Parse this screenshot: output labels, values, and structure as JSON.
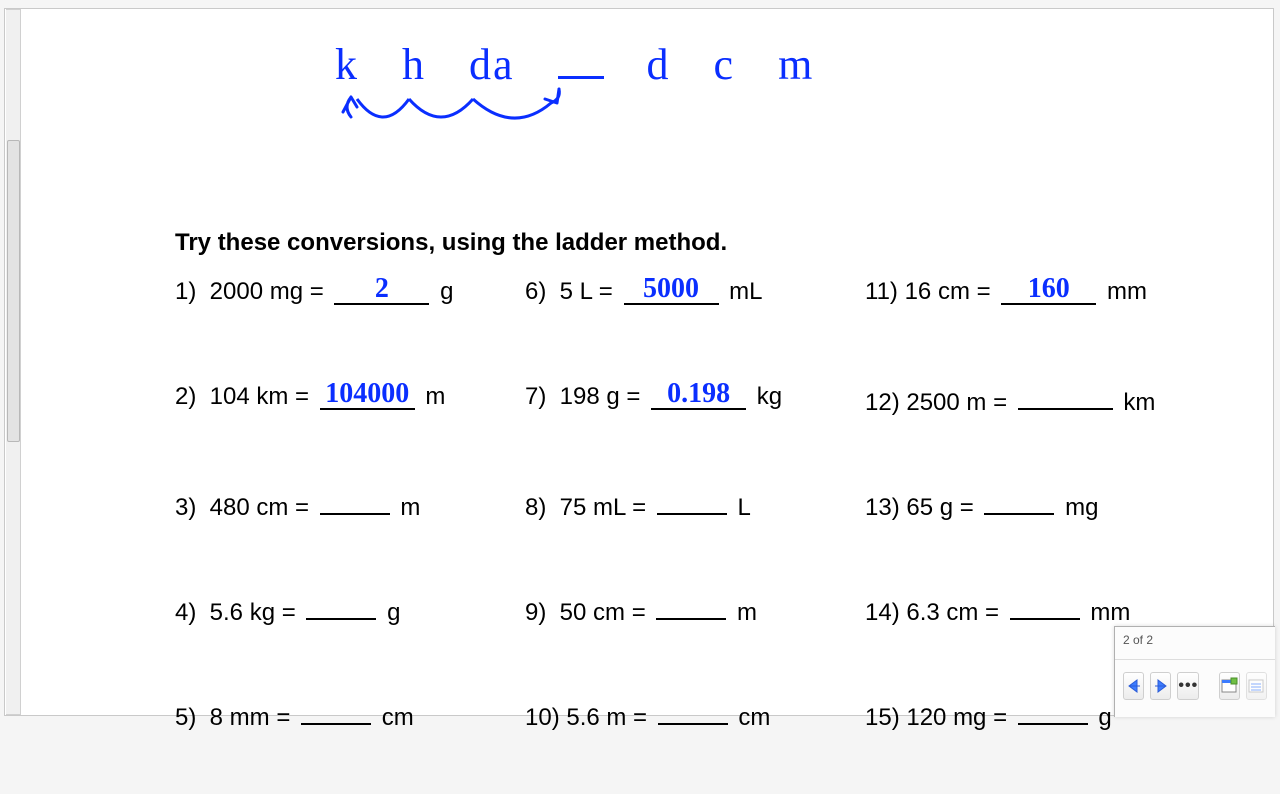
{
  "prefixes": [
    "k",
    "h",
    "da",
    "_",
    "d",
    "c",
    "m"
  ],
  "prefix_color": "#0a2eff",
  "prefix_fontsize": 44,
  "arc_color": "#0a2eff",
  "arc_stroke": 3,
  "instruction": "Try these conversions, using the ladder method.",
  "instruction_fontsize": 24,
  "body_fontsize": 24,
  "answer_color": "#0a2eff",
  "blank_color": "#000000",
  "background_color": "#ffffff",
  "problems": [
    [
      {
        "n": "1)",
        "lhs": "2000 mg =",
        "ans": "2",
        "unit": "g",
        "wide": true
      },
      {
        "n": "6)",
        "lhs": "5 L =",
        "ans": "5000",
        "unit": "mL",
        "wide": true
      },
      {
        "n": "11)",
        "lhs": "16 cm =",
        "ans": "160",
        "unit": "mm",
        "wide": true
      }
    ],
    [
      {
        "n": "2)",
        "lhs": "104  km =",
        "ans": "104000",
        "unit": "m",
        "wide": true
      },
      {
        "n": "7)",
        "lhs": "198 g =",
        "ans": "0.198",
        "unit": "kg",
        "wide": true
      },
      {
        "n": "12)",
        "lhs": "2500 m =",
        "ans": "",
        "unit": "km",
        "wide": true
      }
    ],
    [
      {
        "n": "3)",
        "lhs": "480 cm =",
        "ans": "",
        "unit": "m"
      },
      {
        "n": "8)",
        "lhs": "75 mL =",
        "ans": "",
        "unit": "L"
      },
      {
        "n": "13)",
        "lhs": "65 g =",
        "ans": "",
        "unit": "mg"
      }
    ],
    [
      {
        "n": "4)",
        "lhs": "5.6 kg =",
        "ans": "",
        "unit": "g"
      },
      {
        "n": "9)",
        "lhs": "50 cm =",
        "ans": "",
        "unit": "m"
      },
      {
        "n": "14)",
        "lhs": "6.3 cm =",
        "ans": "",
        "unit": "mm"
      }
    ],
    [
      {
        "n": "5)",
        "lhs": "8 mm =",
        "ans": "",
        "unit": "cm"
      },
      {
        "n": "10)",
        "lhs": "5.6 m =",
        "ans": "",
        "unit": "cm"
      },
      {
        "n": "15)",
        "lhs": "120 mg =",
        "ans": "",
        "unit": "g"
      }
    ]
  ],
  "pager": {
    "status": "2 of 2",
    "nav_prev_color": "#3d7cff",
    "nav_next_color": "#3d7cff",
    "dots": "•••"
  }
}
